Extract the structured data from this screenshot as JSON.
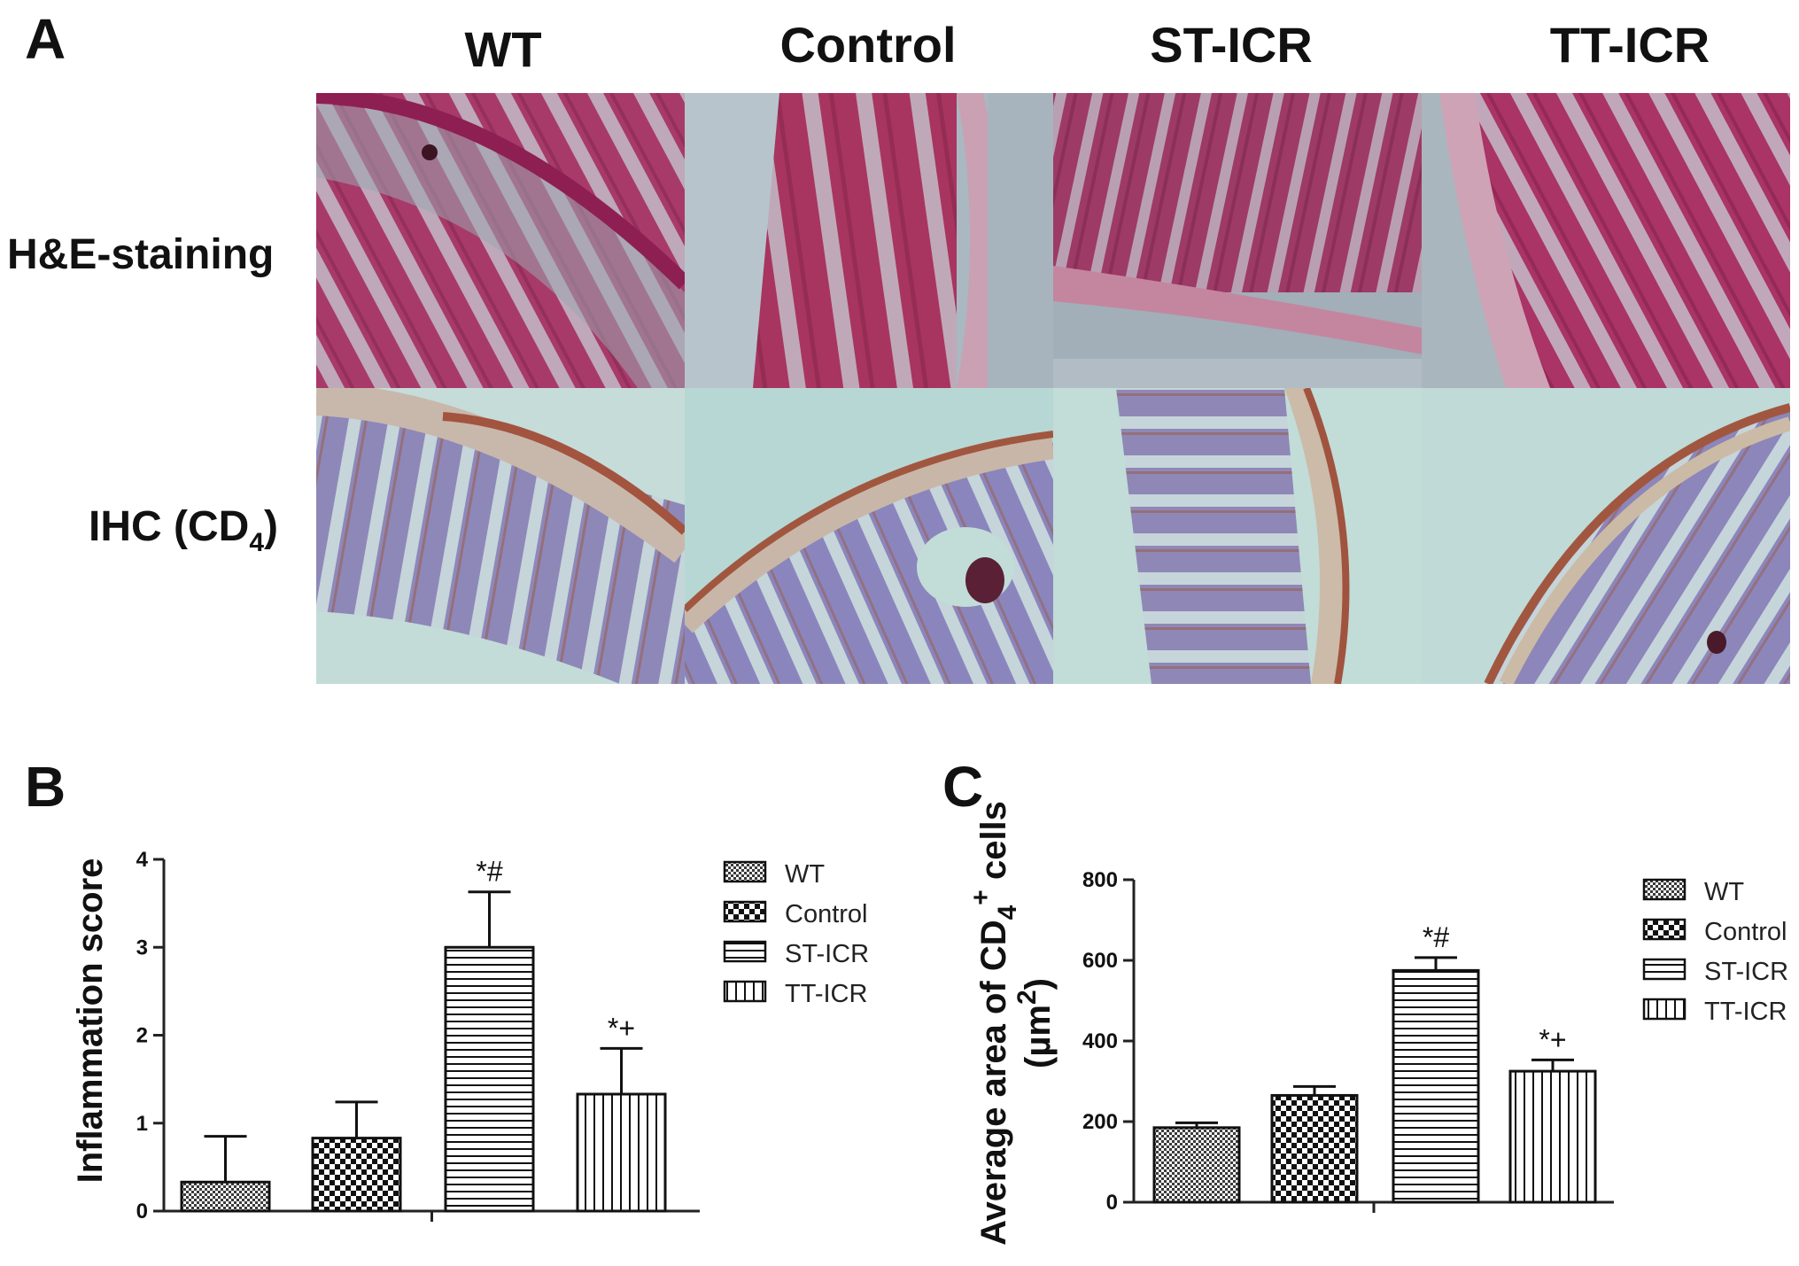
{
  "panels": {
    "a": {
      "letter": "A",
      "columns": [
        "WT",
        "Control",
        "ST-ICR",
        "TT-ICR"
      ],
      "rows": [
        {
          "main": "H&E-staining",
          "sub": ""
        },
        {
          "main": "IHC (CD",
          "sub": "4",
          "close": ")"
        }
      ]
    },
    "b": {
      "letter": "B",
      "ylabel": "Inflammation score"
    },
    "c": {
      "letter": "C",
      "ylabel_line1_a": "Average area of CD",
      "ylabel_line1_sub": "4",
      "ylabel_line1_sup": "+",
      "ylabel_line1_b": " cells",
      "ylabel_line2_a": "(µm",
      "ylabel_line2_sup": "2",
      "ylabel_line2_b": ")"
    }
  },
  "colors": {
    "he_stain": "#b7336b",
    "he_background": "#9aaab3",
    "ihc_stain": "#8c86b8",
    "ihc_background": "#b9d8d6",
    "ihc_brown": "#9a5a45"
  },
  "chart_data": [
    {
      "type": "bar",
      "panel": "B",
      "title": "",
      "categories": [
        "WT",
        "Control",
        "ST-ICR",
        "TT-ICR"
      ],
      "values": [
        0.33,
        0.83,
        3.0,
        1.33
      ],
      "errors": [
        0.52,
        0.41,
        0.63,
        0.52
      ],
      "annotations": [
        "",
        "",
        "*#",
        "*+"
      ],
      "patterns": [
        "dense-check",
        "check",
        "horizontal-lines",
        "vertical-lines"
      ],
      "xlabel": "",
      "ylabel": "Inflammation score",
      "ylim": [
        0,
        4
      ],
      "yticks": [
        "0",
        "1",
        "2",
        "3",
        "4"
      ],
      "legend": [
        "WT",
        "Control",
        "ST-ICR",
        "TT-ICR"
      ],
      "legend_position": "right",
      "grid": false
    },
    {
      "type": "bar",
      "panel": "C",
      "title": "",
      "categories": [
        "WT",
        "Control",
        "ST-ICR",
        "TT-ICR"
      ],
      "values": [
        185,
        265,
        575,
        325
      ],
      "errors": [
        12,
        22,
        32,
        28
      ],
      "annotations": [
        "",
        "",
        "*#",
        "*+"
      ],
      "patterns": [
        "dense-check",
        "check",
        "horizontal-lines",
        "vertical-lines"
      ],
      "xlabel": "",
      "ylabel": "Average area of CD4+ cells (µm2)",
      "ylim": [
        0,
        800
      ],
      "yticks": [
        "0",
        "200",
        "400",
        "600",
        "800"
      ],
      "legend": [
        "WT",
        "Control",
        "ST-ICR",
        "TT-ICR"
      ],
      "legend_position": "right",
      "grid": false
    }
  ]
}
